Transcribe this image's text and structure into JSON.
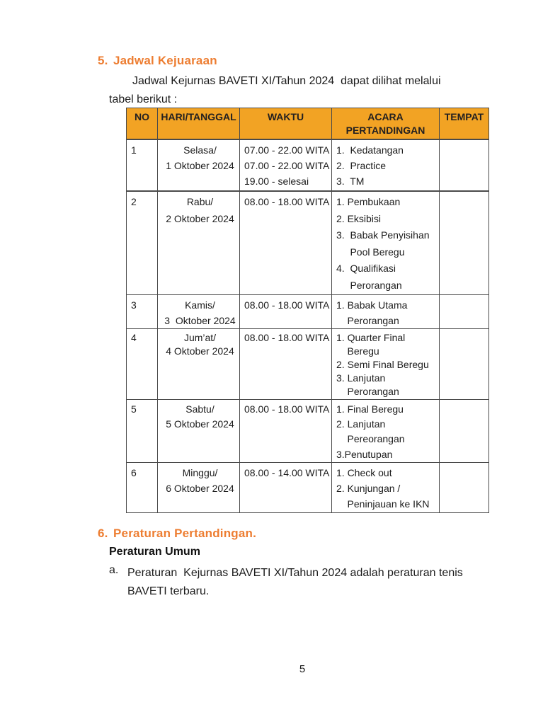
{
  "colors": {
    "heading_orange": "#ED7D31",
    "table_header_bg": "#F2A324",
    "table_border": "#4a4a4a"
  },
  "section5": {
    "number": "5.",
    "title": "Jadwal Kejuaraan",
    "intro_lines": [
      "Jadwal Kejurnas BAVETI XI/Tahun 2024  dapat dilihat melalui",
      "tabel berikut :"
    ]
  },
  "table": {
    "headers": [
      "NO",
      "HARI/TANGGAL",
      "WAKTU",
      "ACARA PERTANDINGAN",
      "TEMPAT"
    ],
    "rows": [
      {
        "no": "1",
        "hari": [
          "Selasa/",
          "1 Oktober 2024"
        ],
        "waktu": [
          "07.00 - 22.00 WITA",
          "07.00 - 22.00 WITA",
          "19.00 - selesai"
        ],
        "acara": [
          "1.  Kedatangan",
          "2.  Practice",
          "3.  TM"
        ],
        "tempat": ""
      },
      {
        "no": "2",
        "hari": [
          "Rabu/",
          "2 Oktober 2024"
        ],
        "waktu": [
          "08.00 - 18.00 WITA"
        ],
        "acara": [
          "1. Pembukaan",
          "2. Eksibisi",
          "3.  Babak Penyisihan",
          "     Pool Beregu",
          "4.  Qualifikasi",
          "     Perorangan"
        ],
        "tempat": ""
      },
      {
        "no": "3",
        "hari": [
          "Kamis/",
          "3  Oktober 2024"
        ],
        "waktu": [
          "08.00 - 18.00 WITA"
        ],
        "acara": [
          "1. Babak Utama",
          "    Perorangan"
        ],
        "tempat": ""
      },
      {
        "no": "4",
        "hari": [
          "Jum’at/",
          "4 Oktober 2024"
        ],
        "waktu": [
          "08.00 - 18.00 WITA"
        ],
        "acara": [
          "1. Quarter Final",
          "    Beregu",
          "2. Semi Final Beregu",
          "3. Lanjutan",
          "    Perorangan"
        ],
        "tempat": ""
      },
      {
        "no": "5",
        "hari": [
          "Sabtu/",
          "5 Oktober 2024"
        ],
        "waktu": [
          "08.00 - 18.00 WITA"
        ],
        "acara": [
          "1. Final Beregu",
          "2. Lanjutan",
          "    Pereorangan",
          "3.Penutupan"
        ],
        "tempat": ""
      },
      {
        "no": "6",
        "hari": [
          "Minggu/",
          "6 Oktober 2024"
        ],
        "waktu": [
          "08.00 - 14.00 WITA"
        ],
        "acara": [
          "1. Check out",
          "2. Kunjungan /",
          "    Peninjauan ke IKN"
        ],
        "tempat": ""
      }
    ]
  },
  "section6": {
    "number": "6.",
    "title": "Peraturan Pertandingan.",
    "subheading": "Peraturan Umum",
    "items": [
      {
        "marker": "a.",
        "lines": [
          "Peraturan  Kejurnas BAVETI XI/Tahun 2024 adalah peraturan tenis",
          "BAVETI terbaru."
        ]
      }
    ]
  },
  "footer": {
    "page_number": "5"
  }
}
